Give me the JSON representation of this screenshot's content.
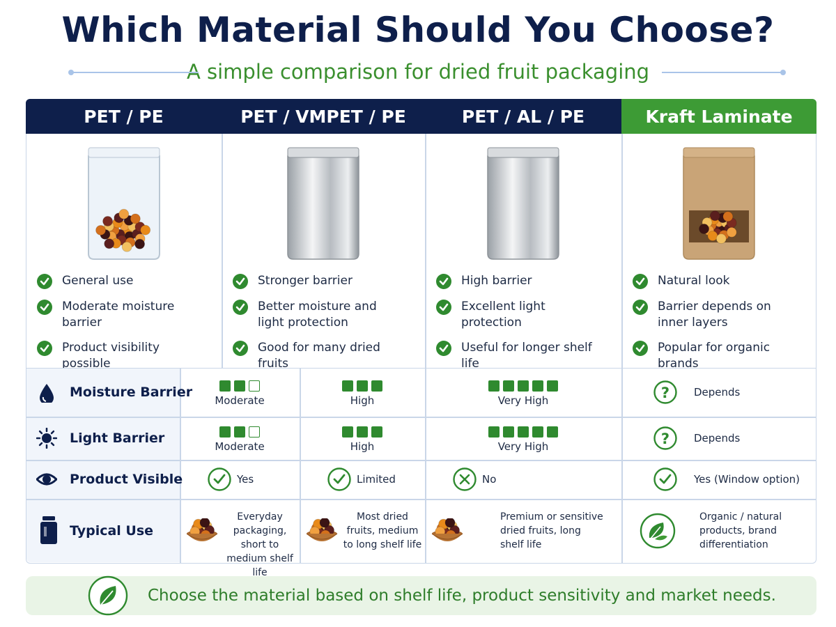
{
  "header": {
    "title": "Which Material Should You Choose?",
    "subtitle": "A simple comparison for dried fruit packaging"
  },
  "materials": [
    {
      "name": "PET / PE",
      "features": [
        "General use",
        "Moderate moisture barrier",
        "Product visibility possible"
      ]
    },
    {
      "name": "PET / VMPET / PE",
      "features": [
        "Stronger barrier",
        "Better moisture and light protection",
        "Good for many dried fruits"
      ]
    },
    {
      "name": "PET / AL / PE",
      "features": [
        "High barrier",
        "Excellent light protection",
        "Useful for longer shelf life"
      ]
    },
    {
      "name": "Kraft Laminate",
      "features": [
        "Natural look",
        "Barrier depends on inner layers",
        "Popular for organic brands"
      ]
    }
  ],
  "comparison": {
    "rows": [
      {
        "label": "Moisture Barrier",
        "cells": [
          {
            "text": "Moderate",
            "level": 2,
            "scale": 3
          },
          {
            "text": "High",
            "level": 3,
            "scale": 3
          },
          {
            "text": "Very High",
            "level": 5,
            "scale": 5
          },
          {
            "text": "Depends",
            "icon": "question"
          }
        ]
      },
      {
        "label": "Light Barrier",
        "cells": [
          {
            "text": "Moderate",
            "level": 2,
            "scale": 3
          },
          {
            "text": "High",
            "level": 3,
            "scale": 3
          },
          {
            "text": "Very High",
            "level": 5,
            "scale": 5
          },
          {
            "text": "Depends",
            "icon": "question"
          }
        ]
      },
      {
        "label": "Product Visible",
        "cells": [
          {
            "text": "Yes",
            "icon": "check"
          },
          {
            "text": "Limited",
            "icon": "check"
          },
          {
            "text": "No",
            "icon": "cross"
          },
          {
            "text": "Yes (Window option)",
            "icon": "check"
          }
        ]
      },
      {
        "label": "Typical Use",
        "cells": [
          {
            "text": "Everyday packaging, short to medium shelf life"
          },
          {
            "text": "Most dried fruits, medium to long shelf life"
          },
          {
            "text": "Premium or sensitive dried fruits, long shelf life"
          },
          {
            "text": "Organic / natural products, brand differentiation"
          }
        ]
      }
    ]
  },
  "footer": {
    "text": "Choose the material based on shelf life, product sensitivity and market needs."
  }
}
